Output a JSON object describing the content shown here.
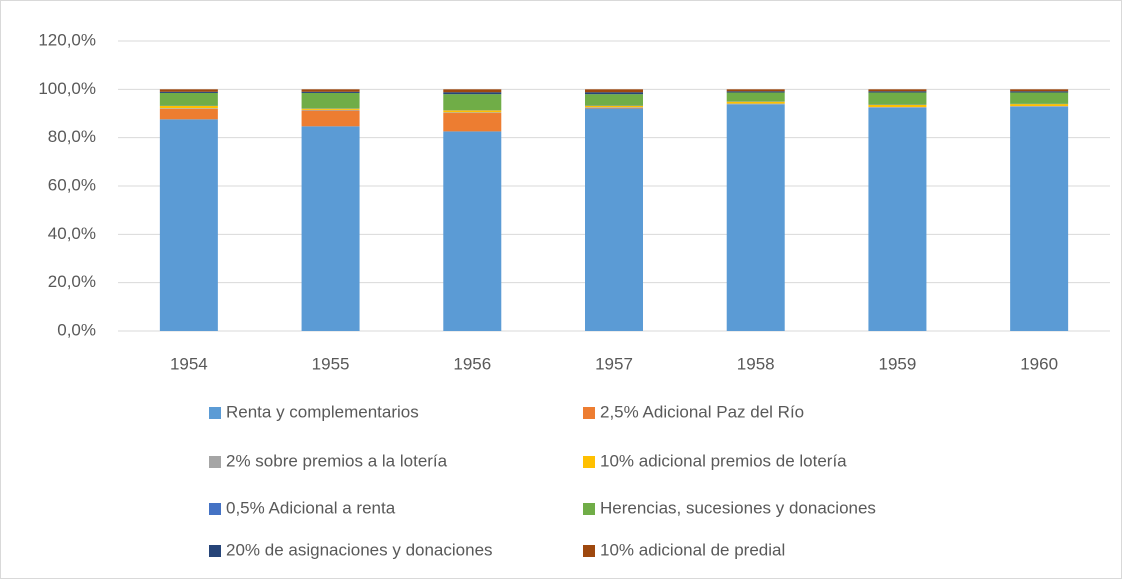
{
  "chart_data": {
    "type": "stacked_bar",
    "categories": [
      "1954",
      "1955",
      "1956",
      "1957",
      "1958",
      "1959",
      "1960"
    ],
    "series": [
      {
        "name": "Renta y complementarios",
        "color": "#5b9bd5",
        "values": [
          87.6,
          84.7,
          82.6,
          92.1,
          93.8,
          92.4,
          92.8
        ]
      },
      {
        "name": "2,5% Adicional Paz del Río",
        "color": "#ed7d31",
        "values": [
          4.3,
          6.5,
          7.6,
          0.2,
          0,
          0,
          0
        ]
      },
      {
        "name": "2% sobre premios a la lotería",
        "color": "#a5a5a5",
        "values": [
          0.3,
          0.3,
          0.3,
          0.3,
          0.3,
          0.3,
          0.3
        ]
      },
      {
        "name": "10% adicional premios de lotería",
        "color": "#ffc000",
        "values": [
          0.9,
          0.5,
          0.8,
          0.6,
          0.8,
          0.9,
          0.8
        ]
      },
      {
        "name": "0,5% Adicional a renta",
        "color": "#4472c4",
        "values": [
          0.1,
          0.1,
          0.1,
          0.1,
          0.1,
          0.1,
          0.1
        ]
      },
      {
        "name": "Herencias, sucesiones y donaciones",
        "color": "#70ad47",
        "values": [
          5.3,
          6.4,
          6.6,
          4.7,
          3.7,
          5.0,
          4.7
        ]
      },
      {
        "name": "20% de asignaciones y donaciones",
        "color": "#264478",
        "values": [
          0.5,
          0.5,
          0.8,
          0.8,
          0.5,
          0.5,
          0.5
        ]
      },
      {
        "name": "10% adicional de predial",
        "color": "#9e480e",
        "values": [
          1.0,
          1.0,
          1.2,
          1.2,
          0.8,
          0.8,
          0.8
        ]
      }
    ],
    "ylim": [
      0,
      120
    ],
    "yticks": [
      {
        "value": 0,
        "label": "0,0%"
      },
      {
        "value": 20,
        "label": "20,0%"
      },
      {
        "value": 40,
        "label": "40,0%"
      },
      {
        "value": 60,
        "label": "60,0%"
      },
      {
        "value": 80,
        "label": "80,0%"
      },
      {
        "value": 100,
        "label": "100,0%"
      },
      {
        "value": 120,
        "label": "120,0%"
      }
    ],
    "grid": true,
    "legend": "bottom"
  }
}
